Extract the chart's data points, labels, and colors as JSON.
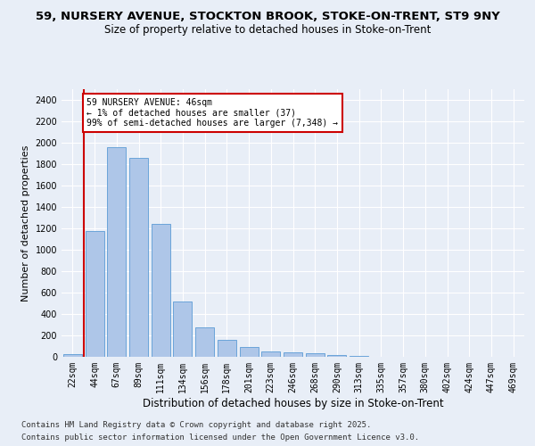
{
  "title_line1": "59, NURSERY AVENUE, STOCKTON BROOK, STOKE-ON-TRENT, ST9 9NY",
  "title_line2": "Size of property relative to detached houses in Stoke-on-Trent",
  "xlabel": "Distribution of detached houses by size in Stoke-on-Trent",
  "ylabel": "Number of detached properties",
  "categories": [
    "22sqm",
    "44sqm",
    "67sqm",
    "89sqm",
    "111sqm",
    "134sqm",
    "156sqm",
    "178sqm",
    "201sqm",
    "223sqm",
    "246sqm",
    "268sqm",
    "290sqm",
    "313sqm",
    "335sqm",
    "357sqm",
    "380sqm",
    "402sqm",
    "424sqm",
    "447sqm",
    "469sqm"
  ],
  "values": [
    28,
    1175,
    1960,
    1855,
    1240,
    515,
    275,
    155,
    90,
    50,
    42,
    30,
    18,
    5,
    2,
    2,
    1,
    1,
    1,
    1,
    1
  ],
  "bar_color": "#aec6e8",
  "bar_edge_color": "#5b9bd5",
  "annotation_text": "59 NURSERY AVENUE: 46sqm\n← 1% of detached houses are smaller (37)\n99% of semi-detached houses are larger (7,348) →",
  "annotation_box_color": "#ffffff",
  "annotation_box_edge": "#cc0000",
  "vline_color": "#cc0000",
  "ylim": [
    0,
    2500
  ],
  "yticks": [
    0,
    200,
    400,
    600,
    800,
    1000,
    1200,
    1400,
    1600,
    1800,
    2000,
    2200,
    2400
  ],
  "background_color": "#e8eef7",
  "plot_bg_color": "#e8eef7",
  "grid_color": "#ffffff",
  "footer_line1": "Contains HM Land Registry data © Crown copyright and database right 2025.",
  "footer_line2": "Contains public sector information licensed under the Open Government Licence v3.0.",
  "title_fontsize": 9.5,
  "subtitle_fontsize": 8.5,
  "tick_fontsize": 7,
  "xlabel_fontsize": 8.5,
  "ylabel_fontsize": 8,
  "footer_fontsize": 6.5,
  "vline_x_index": 0.5
}
